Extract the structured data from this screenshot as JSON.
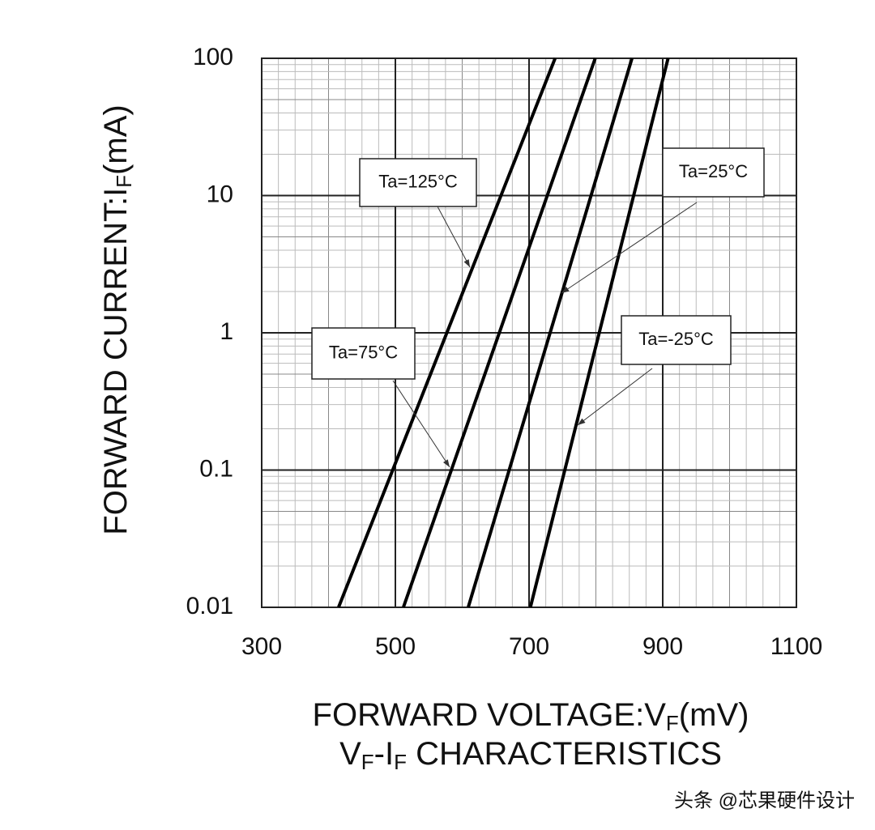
{
  "chart_data": {
    "type": "line",
    "title": [
      "V",
      "F",
      "-I",
      "F",
      " CHARACTERISTICS"
    ],
    "x_label": [
      "FORWARD VOLTAGE:V",
      "F",
      "(mV)"
    ],
    "y_label": [
      "FORWARD CURRENT:I",
      "F",
      "(mA)"
    ],
    "series": [
      {
        "name": "Ta=125°C",
        "color": "#000000",
        "x": [
          415,
          739
        ],
        "values": [
          0.01,
          100
        ]
      },
      {
        "name": "Ta=75°C",
        "color": "#000000",
        "x": [
          512,
          799
        ],
        "values": [
          0.01,
          100
        ]
      },
      {
        "name": "Ta=25°C",
        "color": "#000000",
        "x": [
          609,
          854
        ],
        "values": [
          0.01,
          100
        ]
      },
      {
        "name": "Ta=-25°C",
        "color": "#000000",
        "x": [
          702,
          908
        ],
        "values": [
          0.01,
          100
        ]
      }
    ],
    "xlim": [
      300,
      1100
    ],
    "xticks": [
      300,
      500,
      700,
      900,
      1100
    ],
    "x_minor_step": 25,
    "ylim": [
      0.01,
      100
    ],
    "yticks": [
      0.01,
      0.1,
      1,
      10,
      100
    ],
    "y_log": true,
    "grid": true,
    "watermark": "头条 @芯果硬件设计"
  }
}
